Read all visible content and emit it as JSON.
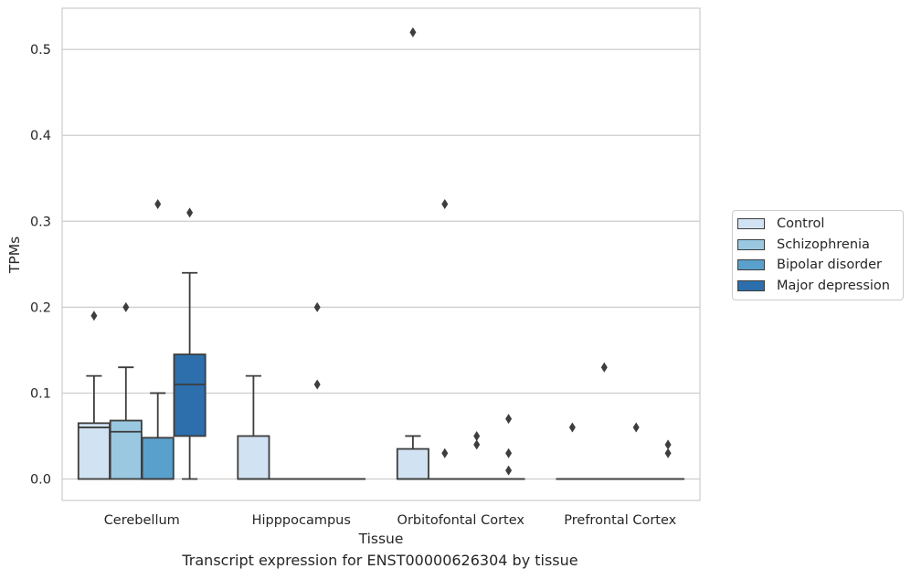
{
  "chart_data": {
    "type": "boxplot",
    "title": "",
    "caption": "Transcript expression for ENST00000626304 by tissue",
    "xlabel": "Tissue",
    "ylabel": "TPMs",
    "ylim": [
      -0.025,
      0.548
    ],
    "yticks": [
      0.0,
      0.1,
      0.2,
      0.3,
      0.4,
      0.5
    ],
    "ytick_labels": [
      "0.0",
      "0.1",
      "0.2",
      "0.3",
      "0.4",
      "0.5"
    ],
    "grid": "horizontal",
    "legend_position": "right",
    "categories": [
      "Cerebellum",
      "Hipppocampus",
      "Orbitofontal Cortex",
      "Prefrontal Cortex"
    ],
    "series": [
      {
        "name": "Control",
        "color": "#d1e2f2",
        "boxes": [
          {
            "q1": 0.0,
            "median": 0.06,
            "q3": 0.065,
            "whisker_low": 0.0,
            "whisker_high": 0.12,
            "outliers": [
              0.19
            ]
          },
          {
            "q1": 0.0,
            "median": 0.0,
            "q3": 0.05,
            "whisker_low": 0.0,
            "whisker_high": 0.12,
            "outliers": []
          },
          {
            "q1": 0.0,
            "median": 0.0,
            "q3": 0.035,
            "whisker_low": 0.0,
            "whisker_high": 0.05,
            "outliers": [
              0.52
            ]
          },
          {
            "q1": 0.0,
            "median": 0.0,
            "q3": 0.0,
            "whisker_low": 0.0,
            "whisker_high": 0.0,
            "outliers": [
              0.06
            ]
          }
        ]
      },
      {
        "name": "Schizophrenia",
        "color": "#9ac8e0",
        "boxes": [
          {
            "q1": 0.0,
            "median": 0.055,
            "q3": 0.068,
            "whisker_low": 0.0,
            "whisker_high": 0.13,
            "outliers": [
              0.2
            ]
          },
          {
            "q1": 0.0,
            "median": 0.0,
            "q3": 0.0,
            "whisker_low": 0.0,
            "whisker_high": 0.0,
            "outliers": []
          },
          {
            "q1": 0.0,
            "median": 0.0,
            "q3": 0.0,
            "whisker_low": 0.0,
            "whisker_high": 0.0,
            "outliers": [
              0.32,
              0.03
            ]
          },
          {
            "q1": 0.0,
            "median": 0.0,
            "q3": 0.0,
            "whisker_low": 0.0,
            "whisker_high": 0.0,
            "outliers": [
              0.13
            ]
          }
        ]
      },
      {
        "name": "Bipolar disorder",
        "color": "#5aa0cc",
        "boxes": [
          {
            "q1": 0.0,
            "median": 0.0,
            "q3": 0.048,
            "whisker_low": 0.0,
            "whisker_high": 0.1,
            "outliers": [
              0.32
            ]
          },
          {
            "q1": 0.0,
            "median": 0.0,
            "q3": 0.0,
            "whisker_low": 0.0,
            "whisker_high": 0.0,
            "outliers": [
              0.2,
              0.11
            ]
          },
          {
            "q1": 0.0,
            "median": 0.0,
            "q3": 0.0,
            "whisker_low": 0.0,
            "whisker_high": 0.0,
            "outliers": [
              0.05,
              0.04
            ]
          },
          {
            "q1": 0.0,
            "median": 0.0,
            "q3": 0.0,
            "whisker_low": 0.0,
            "whisker_high": 0.0,
            "outliers": [
              0.06
            ]
          }
        ]
      },
      {
        "name": "Major depression",
        "color": "#2c6fac",
        "boxes": [
          {
            "q1": 0.05,
            "median": 0.11,
            "q3": 0.145,
            "whisker_low": 0.0,
            "whisker_high": 0.24,
            "outliers": [
              0.31
            ]
          },
          {
            "q1": 0.0,
            "median": 0.0,
            "q3": 0.0,
            "whisker_low": 0.0,
            "whisker_high": 0.0,
            "outliers": []
          },
          {
            "q1": 0.0,
            "median": 0.0,
            "q3": 0.0,
            "whisker_low": 0.0,
            "whisker_high": 0.0,
            "outliers": [
              0.07,
              0.03,
              0.01
            ]
          },
          {
            "q1": 0.0,
            "median": 0.0,
            "q3": 0.0,
            "whisker_low": 0.0,
            "whisker_high": 0.0,
            "outliers": [
              0.04,
              0.03
            ]
          }
        ]
      }
    ]
  }
}
